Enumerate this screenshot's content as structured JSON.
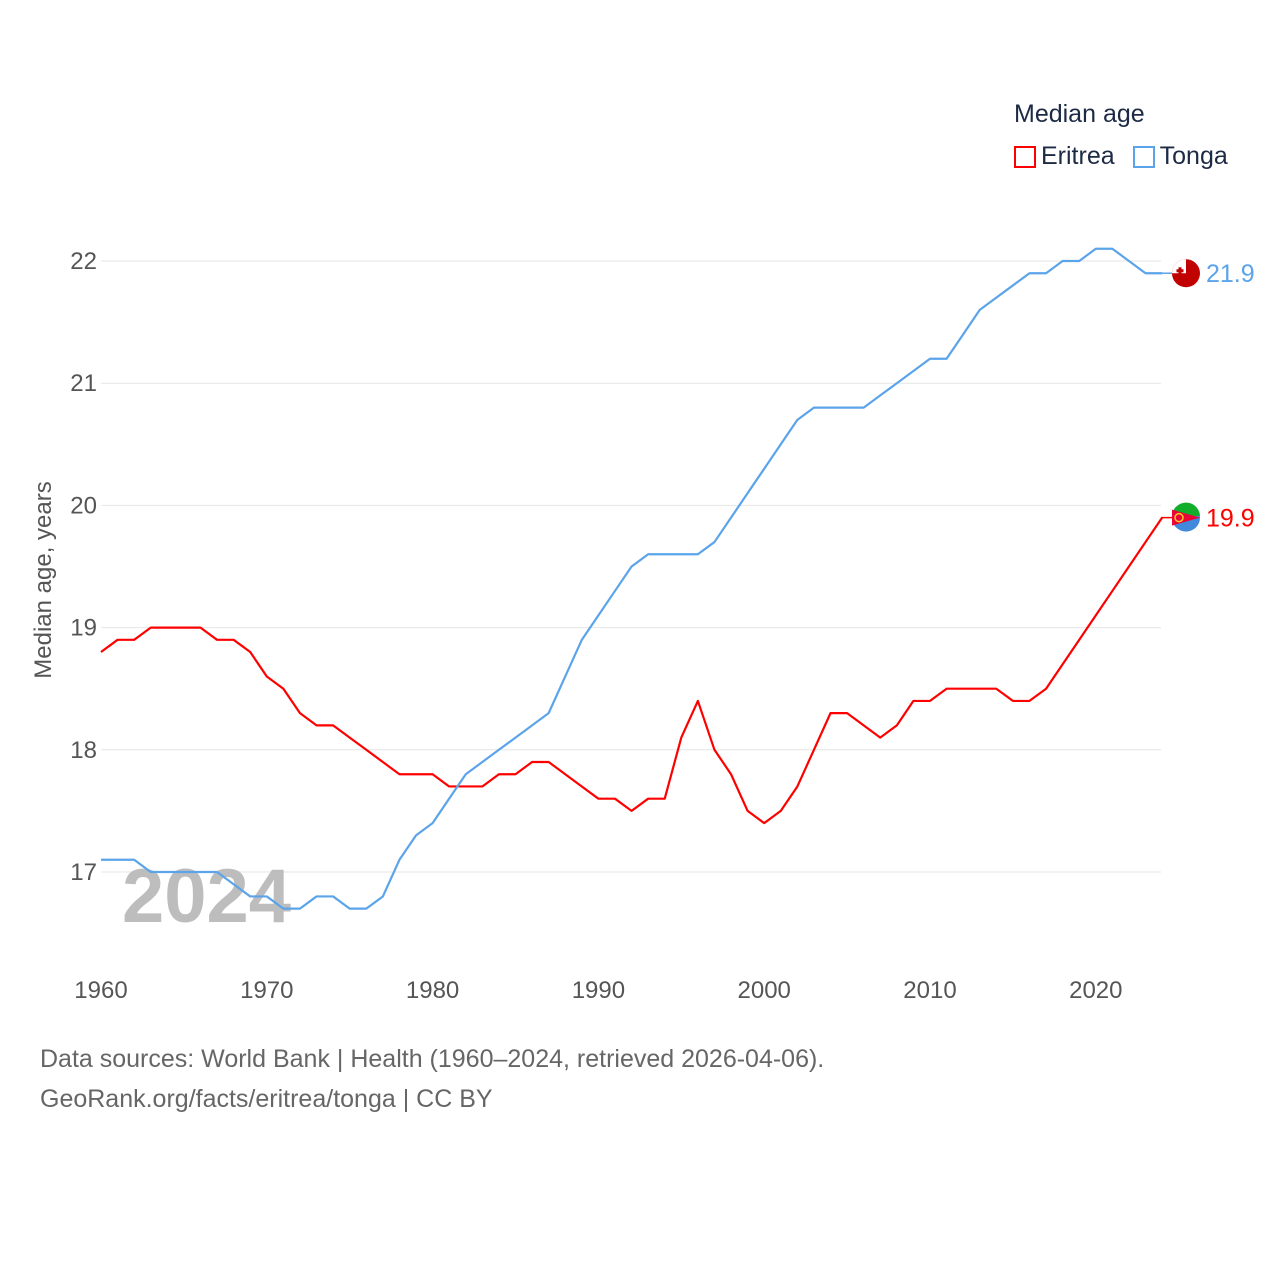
{
  "chart_data": {
    "type": "line",
    "title": "",
    "xlabel": "",
    "ylabel": "Median age, years",
    "xlim": [
      1960,
      2024
    ],
    "ylim": [
      16.4,
      22.6
    ],
    "yticks": [
      17,
      18,
      19,
      20,
      21,
      22
    ],
    "xticks": [
      1960,
      1970,
      1980,
      1990,
      2000,
      2010,
      2020
    ],
    "grid": true,
    "watermark_year": "2024",
    "legend": {
      "title": "Median age",
      "placement": "top-right"
    },
    "x": [
      1960,
      1961,
      1962,
      1963,
      1964,
      1965,
      1966,
      1967,
      1968,
      1969,
      1970,
      1971,
      1972,
      1973,
      1974,
      1975,
      1976,
      1977,
      1978,
      1979,
      1980,
      1981,
      1982,
      1983,
      1984,
      1985,
      1986,
      1987,
      1988,
      1989,
      1990,
      1991,
      1992,
      1993,
      1994,
      1995,
      1996,
      1997,
      1998,
      1999,
      2000,
      2001,
      2002,
      2003,
      2004,
      2005,
      2006,
      2007,
      2008,
      2009,
      2010,
      2011,
      2012,
      2013,
      2014,
      2015,
      2016,
      2017,
      2018,
      2019,
      2020,
      2021,
      2022,
      2023,
      2024
    ],
    "series": [
      {
        "name": "Eritrea",
        "color": "#ff0000",
        "end_label": "19.9",
        "values": [
          18.8,
          18.9,
          18.9,
          19.0,
          19.0,
          19.0,
          19.0,
          18.9,
          18.9,
          18.8,
          18.6,
          18.5,
          18.3,
          18.2,
          18.2,
          18.1,
          18.0,
          17.9,
          17.8,
          17.8,
          17.8,
          17.7,
          17.7,
          17.7,
          17.8,
          17.8,
          17.9,
          17.9,
          17.8,
          17.7,
          17.6,
          17.6,
          17.5,
          17.6,
          17.6,
          18.1,
          18.4,
          18.0,
          17.8,
          17.5,
          17.4,
          17.5,
          17.7,
          18.0,
          18.3,
          18.3,
          18.2,
          18.1,
          18.2,
          18.4,
          18.4,
          18.5,
          18.5,
          18.5,
          18.5,
          18.4,
          18.4,
          18.5,
          18.7,
          18.9,
          19.1,
          19.3,
          19.5,
          19.7,
          19.9
        ]
      },
      {
        "name": "Tonga",
        "color": "#5ba4ea",
        "end_label": "21.9",
        "values": [
          17.1,
          17.1,
          17.1,
          17.0,
          17.0,
          17.0,
          17.0,
          17.0,
          16.9,
          16.8,
          16.8,
          16.7,
          16.7,
          16.8,
          16.8,
          16.7,
          16.7,
          16.8,
          17.1,
          17.3,
          17.4,
          17.6,
          17.8,
          17.9,
          18.0,
          18.1,
          18.2,
          18.3,
          18.6,
          18.9,
          19.1,
          19.3,
          19.5,
          19.6,
          19.6,
          19.6,
          19.6,
          19.7,
          19.9,
          20.1,
          20.3,
          20.5,
          20.7,
          20.8,
          20.8,
          20.8,
          20.8,
          20.9,
          21.0,
          21.1,
          21.2,
          21.2,
          21.4,
          21.6,
          21.7,
          21.8,
          21.9,
          21.9,
          22.0,
          22.0,
          22.1,
          22.1,
          22.0,
          21.9,
          21.9
        ]
      }
    ]
  },
  "footer": {
    "line1": "Data sources: World Bank | Health (1960–2024, retrieved 2026-04-06).",
    "line2": "GeoRank.org/facts/eritrea/tonga | CC BY"
  }
}
